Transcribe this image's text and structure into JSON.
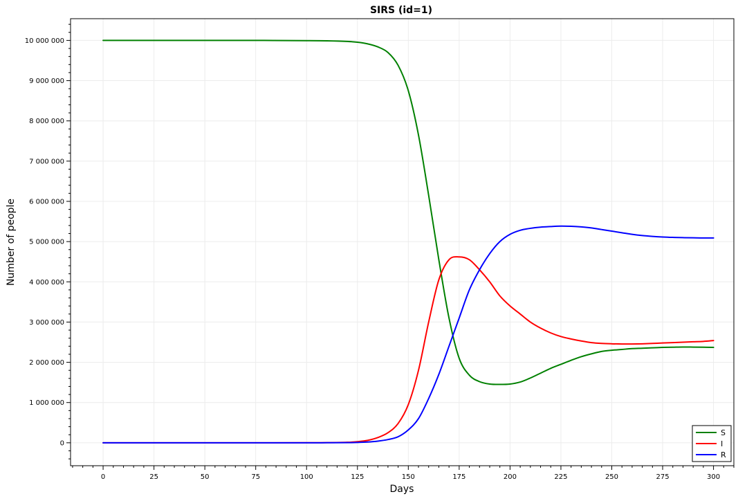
{
  "chart_data": {
    "type": "line",
    "title": "SIRS (id=1)",
    "xlabel": "Days",
    "ylabel": "Number of people",
    "xlim": [
      -16,
      310
    ],
    "ylim": [
      -570000,
      10540000
    ],
    "x_ticks": [
      0,
      25,
      50,
      75,
      100,
      125,
      150,
      175,
      200,
      225,
      250,
      275,
      300
    ],
    "x_tick_labels": [
      "0",
      "25",
      "50",
      "75",
      "100",
      "125",
      "150",
      "175",
      "200",
      "225",
      "250",
      "275",
      "300"
    ],
    "y_ticks": [
      0,
      1000000,
      2000000,
      3000000,
      4000000,
      5000000,
      6000000,
      7000000,
      8000000,
      9000000,
      10000000
    ],
    "y_tick_labels": [
      "0",
      "1 000 000",
      "2 000 000",
      "3 000 000",
      "4 000 000",
      "5 000 000",
      "6 000 000",
      "7 000 000",
      "8 000 000",
      "9 000 000",
      "10 000 000"
    ],
    "grid": true,
    "legend": {
      "position": "bottom-right"
    },
    "x": [
      0,
      25,
      50,
      75,
      100,
      110,
      120,
      125,
      130,
      135,
      140,
      145,
      150,
      155,
      160,
      165,
      170,
      175,
      180,
      185,
      190,
      195,
      200,
      205,
      210,
      215,
      220,
      225,
      230,
      235,
      240,
      245,
      250,
      255,
      260,
      265,
      270,
      275,
      280,
      285,
      290,
      295,
      300
    ],
    "series": [
      {
        "name": "S",
        "color": "#008000",
        "values": [
          10000000,
          10000000,
          10000000,
          10000000,
          9995000,
          9990000,
          9975000,
          9955000,
          9915000,
          9840000,
          9700000,
          9380000,
          8750000,
          7650000,
          6150000,
          4550000,
          3100000,
          2100000,
          1680000,
          1520000,
          1460000,
          1450000,
          1460000,
          1510000,
          1610000,
          1730000,
          1850000,
          1950000,
          2050000,
          2140000,
          2210000,
          2270000,
          2300000,
          2320000,
          2340000,
          2350000,
          2360000,
          2370000,
          2375000,
          2380000,
          2378000,
          2375000,
          2370000
        ]
      },
      {
        "name": "I",
        "color": "#ff0000",
        "values": [
          0,
          0,
          0,
          0,
          1000,
          3000,
          12000,
          28000,
          60000,
          130000,
          250000,
          480000,
          950000,
          1800000,
          3000000,
          4050000,
          4550000,
          4620000,
          4550000,
          4300000,
          4000000,
          3650000,
          3400000,
          3200000,
          3000000,
          2850000,
          2730000,
          2640000,
          2580000,
          2530000,
          2490000,
          2470000,
          2460000,
          2455000,
          2455000,
          2460000,
          2470000,
          2480000,
          2490000,
          2500000,
          2510000,
          2520000,
          2540000
        ]
      },
      {
        "name": "R",
        "color": "#0000ff",
        "values": [
          0,
          0,
          0,
          0,
          500,
          1000,
          3500,
          8000,
          18000,
          40000,
          80000,
          150000,
          320000,
          600000,
          1100000,
          1700000,
          2400000,
          3100000,
          3800000,
          4300000,
          4700000,
          5000000,
          5180000,
          5280000,
          5330000,
          5360000,
          5375000,
          5385000,
          5380000,
          5365000,
          5340000,
          5300000,
          5260000,
          5220000,
          5180000,
          5150000,
          5130000,
          5115000,
          5105000,
          5098000,
          5094000,
          5090000,
          5090000
        ]
      }
    ]
  }
}
